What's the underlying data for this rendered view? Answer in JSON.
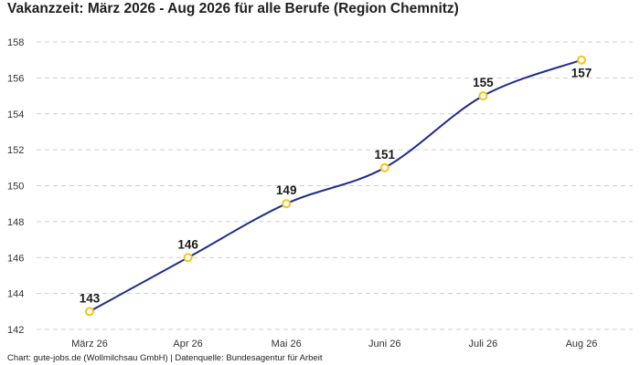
{
  "title": "Vakanzzeit: März 2026 - Aug 2026 für alle Berufe (Region Chemnitz)",
  "footer": "Chart: gute-jobs.de (Wollmilchsau GmbH) | Datenquelle: Bundesagentur für Arbeit",
  "chart_data": {
    "type": "line",
    "title": "Vakanzzeit: März 2026 - Aug 2026 für alle Berufe (Region Chemnitz)",
    "xlabel": "",
    "ylabel": "",
    "categories": [
      "März 26",
      "Apr 26",
      "Mai 26",
      "Juni 26",
      "Juli 26",
      "Aug 26"
    ],
    "values": [
      143,
      146,
      149,
      151,
      155,
      157
    ],
    "ylim": [
      142,
      158
    ],
    "yticks": [
      142,
      144,
      146,
      148,
      150,
      152,
      154,
      156,
      158
    ],
    "grid": true,
    "line_color": "#1f2f8a",
    "marker_color": "#f5c51a",
    "grid_color": "#cfcfcf"
  }
}
